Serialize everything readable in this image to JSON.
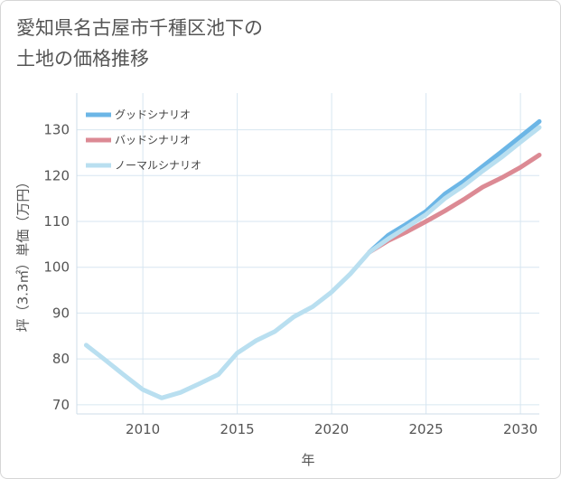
{
  "title_lines": [
    "愛知県名古屋市千種区池下の",
    "土地の価格推移"
  ],
  "chart_data": {
    "type": "line",
    "title": "愛知県名古屋市千種区池下の土地の価格推移",
    "xlabel": "年",
    "ylabel": "坪（3.3㎡）単価（万円）",
    "xlim": [
      2006.5,
      2031
    ],
    "ylim": [
      68,
      138
    ],
    "xticks": [
      2010,
      2015,
      2020,
      2025,
      2030
    ],
    "yticks": [
      70,
      80,
      90,
      100,
      110,
      120,
      130
    ],
    "grid": true,
    "legend_position": "top-left",
    "series": [
      {
        "name": "グッドシナリオ",
        "color": "#6cb6e6",
        "x": [
          2022,
          2023,
          2024,
          2025,
          2026,
          2027,
          2028,
          2029,
          2030,
          2031
        ],
        "y": [
          103.3,
          107.0,
          109.5,
          112.2,
          116.0,
          118.8,
          122.0,
          125.2,
          128.5,
          131.8
        ]
      },
      {
        "name": "バッドシナリオ",
        "color": "#dc8a94",
        "x": [
          2022,
          2023,
          2024,
          2025,
          2026,
          2027,
          2028,
          2029,
          2030,
          2031
        ],
        "y": [
          103.3,
          105.8,
          107.8,
          110.0,
          112.3,
          114.8,
          117.5,
          119.5,
          121.8,
          124.5
        ]
      },
      {
        "name": "ノーマルシナリオ",
        "color": "#b9dff0",
        "x": [
          2007,
          2008,
          2009,
          2010,
          2011,
          2012,
          2013,
          2014,
          2015,
          2016,
          2017,
          2018,
          2019,
          2020,
          2021,
          2022,
          2023,
          2024,
          2025,
          2026,
          2027,
          2028,
          2029,
          2030,
          2031
        ],
        "y": [
          83.0,
          79.8,
          76.5,
          73.3,
          71.5,
          72.7,
          74.6,
          76.6,
          81.3,
          84.0,
          86.0,
          89.2,
          91.4,
          94.6,
          98.6,
          103.3,
          106.2,
          108.8,
          111.5,
          115.0,
          117.8,
          121.0,
          124.0,
          127.3,
          130.5
        ]
      }
    ]
  }
}
